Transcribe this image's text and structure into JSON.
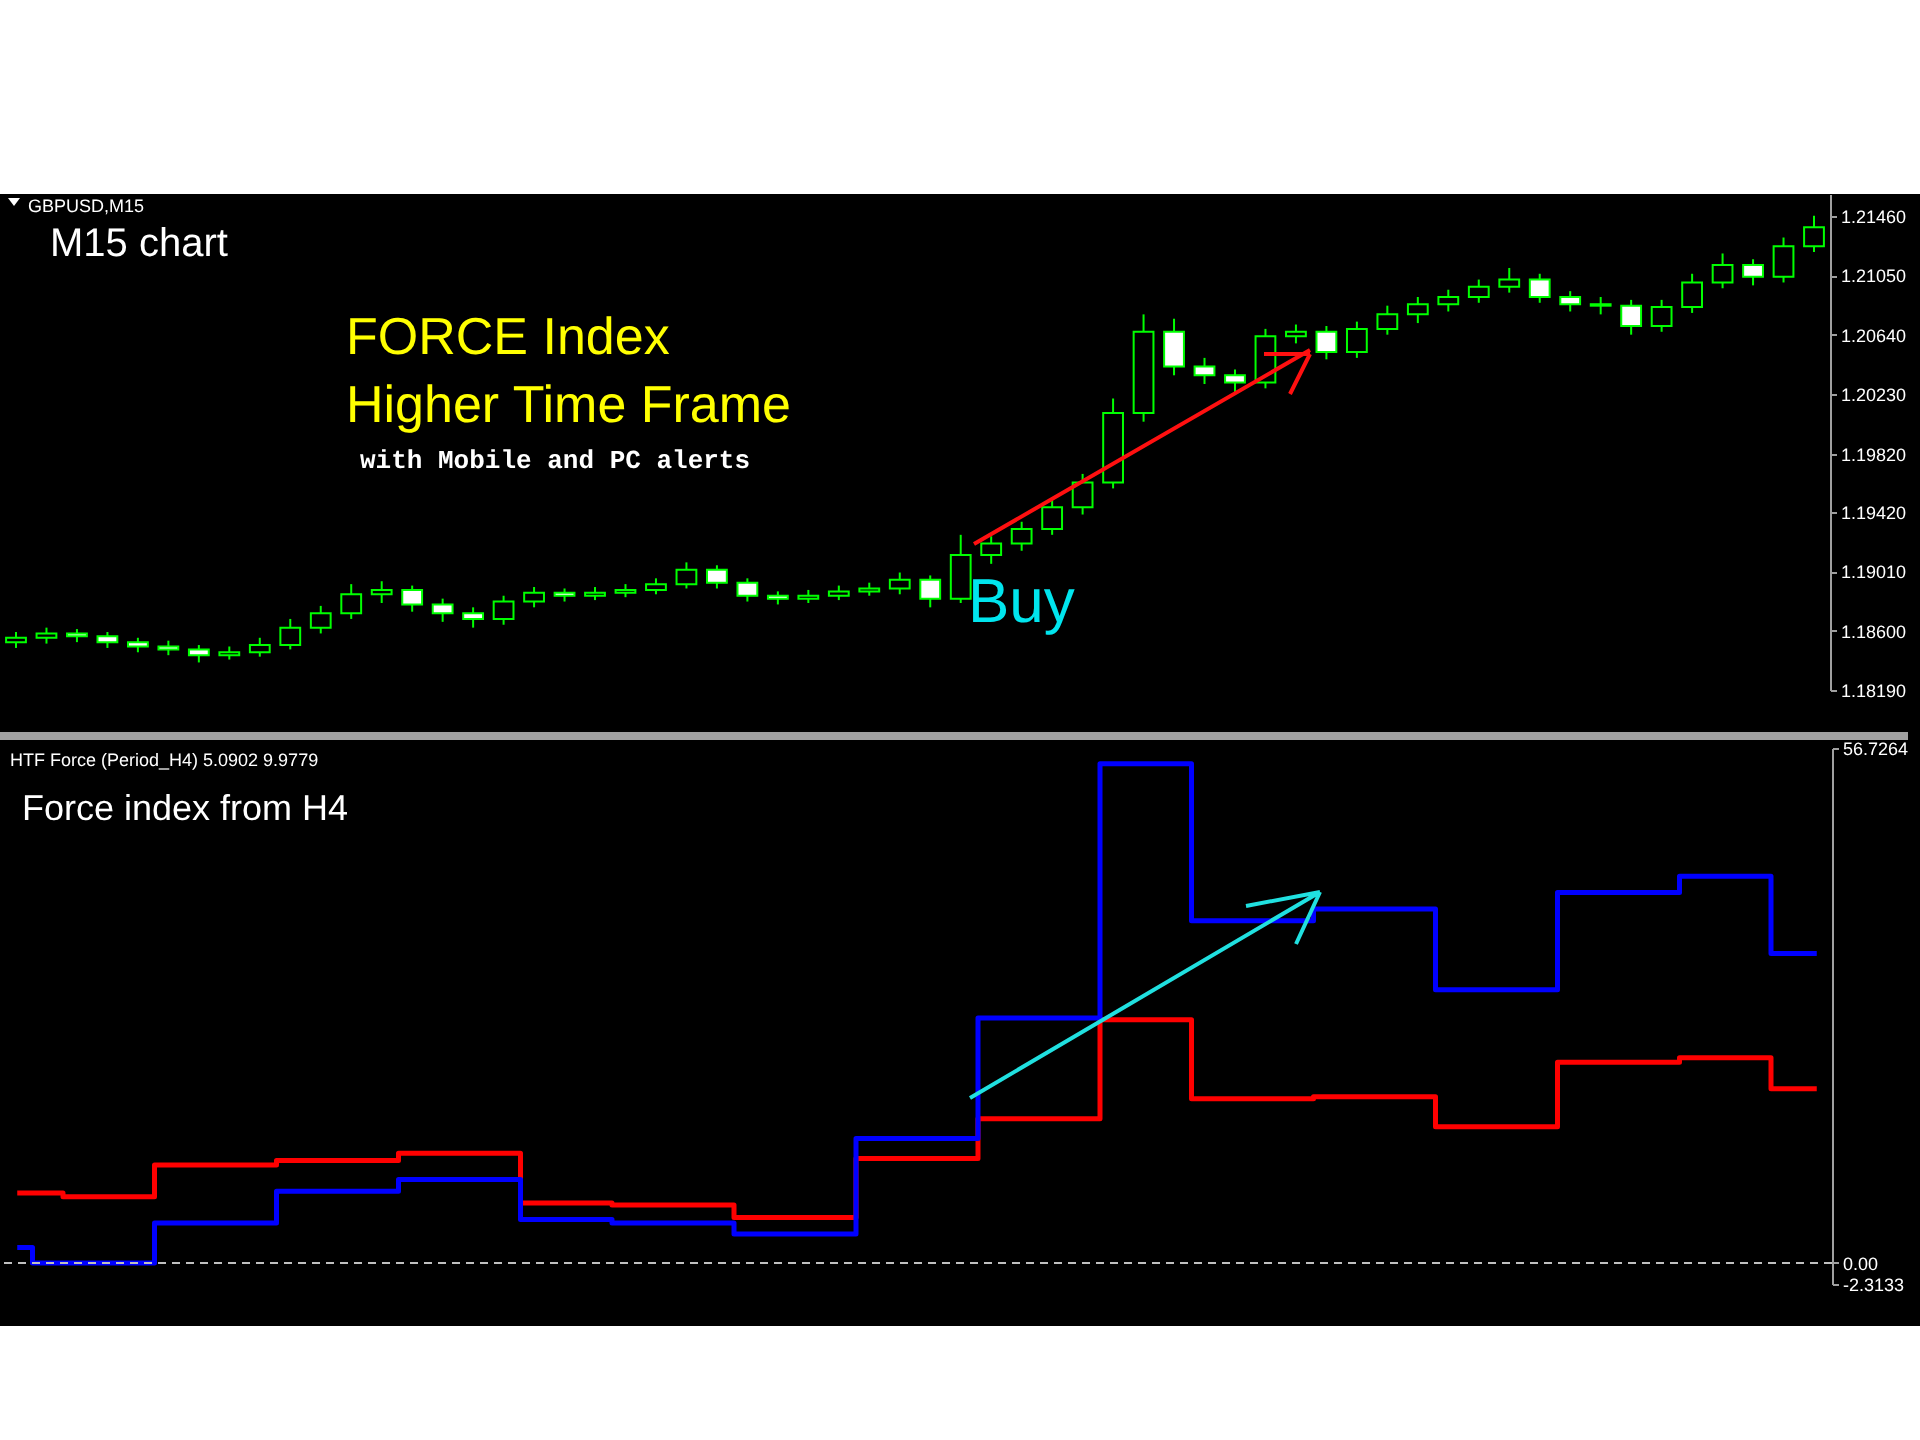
{
  "chart_data": [
    {
      "type": "candlestick",
      "title": "GBPUSD,M15",
      "color": "#00ff00",
      "annotations": [
        "M15 chart",
        "FORCE Index",
        "Higher Time Frame",
        "with Mobile and PC alerts",
        "Buy"
      ],
      "categories": [
        null,
        null,
        null,
        null,
        null,
        null,
        null,
        null,
        null,
        null,
        null,
        null,
        null,
        null,
        null,
        null,
        null,
        null,
        null,
        null,
        null,
        null,
        null,
        null,
        null,
        null,
        null,
        null,
        null,
        null,
        null,
        null,
        null,
        null,
        null,
        null,
        null,
        null,
        null,
        null,
        null,
        null,
        null,
        null,
        null,
        null,
        null,
        null,
        null,
        null,
        null,
        null,
        null,
        null,
        null,
        null,
        null,
        null,
        null,
        null
      ],
      "ohlc": [
        [
          1.1852,
          1.1859,
          1.1848,
          1.1855
        ],
        [
          1.1855,
          1.1862,
          1.1851,
          1.1858
        ],
        [
          1.1858,
          1.1861,
          1.1852,
          1.1856
        ],
        [
          1.1856,
          1.1859,
          1.1848,
          1.1852
        ],
        [
          1.1852,
          1.1855,
          1.1845,
          1.1849
        ],
        [
          1.1849,
          1.1853,
          1.1843,
          1.1847
        ],
        [
          1.1847,
          1.185,
          1.1838,
          1.1843
        ],
        [
          1.1843,
          1.1849,
          1.184,
          1.1845
        ],
        [
          1.1845,
          1.1855,
          1.1842,
          1.185
        ],
        [
          1.185,
          1.1868,
          1.1847,
          1.1862
        ],
        [
          1.1862,
          1.1877,
          1.1858,
          1.1872
        ],
        [
          1.1872,
          1.1892,
          1.1868,
          1.1885
        ],
        [
          1.1885,
          1.1894,
          1.1879,
          1.1888
        ],
        [
          1.1888,
          1.1891,
          1.1873,
          1.1878
        ],
        [
          1.1878,
          1.1882,
          1.1866,
          1.1872
        ],
        [
          1.1872,
          1.1876,
          1.1862,
          1.1868
        ],
        [
          1.1868,
          1.1884,
          1.1864,
          1.188
        ],
        [
          1.188,
          1.189,
          1.1876,
          1.1886
        ],
        [
          1.1886,
          1.1889,
          1.188,
          1.1884
        ],
        [
          1.1884,
          1.189,
          1.1881,
          1.1886
        ],
        [
          1.1886,
          1.1892,
          1.1883,
          1.1888
        ],
        [
          1.1888,
          1.1896,
          1.1885,
          1.1892
        ],
        [
          1.1892,
          1.1907,
          1.1889,
          1.1902
        ],
        [
          1.1902,
          1.1905,
          1.1889,
          1.1893
        ],
        [
          1.1893,
          1.1896,
          1.188,
          1.1884
        ],
        [
          1.1884,
          1.1887,
          1.1878,
          1.1882
        ],
        [
          1.1882,
          1.1888,
          1.1879,
          1.1884
        ],
        [
          1.1884,
          1.1891,
          1.1881,
          1.1887
        ],
        [
          1.1887,
          1.1893,
          1.1884,
          1.1889
        ],
        [
          1.1889,
          1.19,
          1.1885,
          1.1895
        ],
        [
          1.1895,
          1.1898,
          1.1876,
          1.1882
        ],
        [
          1.1882,
          1.1926,
          1.1879,
          1.1912
        ],
        [
          1.1912,
          1.1925,
          1.1906,
          1.192
        ],
        [
          1.192,
          1.1935,
          1.1915,
          1.193
        ],
        [
          1.193,
          1.1951,
          1.1926,
          1.1945
        ],
        [
          1.1945,
          1.1968,
          1.194,
          1.1962
        ],
        [
          1.1962,
          1.202,
          1.1958,
          1.201
        ],
        [
          1.201,
          1.2078,
          1.2004,
          1.2066
        ],
        [
          1.2066,
          1.2075,
          1.2036,
          1.2042
        ],
        [
          1.2042,
          1.2048,
          1.203,
          1.2036
        ],
        [
          1.2036,
          1.204,
          1.2024,
          1.2031
        ],
        [
          1.2031,
          1.2068,
          1.2027,
          1.2063
        ],
        [
          1.2063,
          1.2071,
          1.2058,
          1.2066
        ],
        [
          1.2066,
          1.207,
          1.2047,
          1.2052
        ],
        [
          1.2052,
          1.2073,
          1.2048,
          1.2068
        ],
        [
          1.2068,
          1.2084,
          1.2064,
          1.2078
        ],
        [
          1.2078,
          1.209,
          1.2072,
          1.2085
        ],
        [
          1.2085,
          1.2095,
          1.208,
          1.209
        ],
        [
          1.209,
          1.2102,
          1.2086,
          1.2097
        ],
        [
          1.2097,
          1.211,
          1.2093,
          1.2102
        ],
        [
          1.2102,
          1.2106,
          1.2086,
          1.209
        ],
        [
          1.209,
          1.2094,
          1.208,
          1.2085
        ],
        [
          1.2085,
          1.209,
          1.2078,
          1.2084
        ],
        [
          1.2084,
          1.2088,
          1.2064,
          1.207
        ],
        [
          1.207,
          1.2088,
          1.2066,
          1.2083
        ],
        [
          1.2083,
          1.2106,
          1.2079,
          1.21
        ],
        [
          1.21,
          1.212,
          1.2096,
          1.2112
        ],
        [
          1.2112,
          1.2116,
          1.2098,
          1.2104
        ],
        [
          1.2104,
          1.2131,
          1.21,
          1.2125
        ],
        [
          1.2125,
          1.2146,
          1.2121,
          1.2138
        ]
      ],
      "ylim": [
        1.1819,
        1.2161
      ],
      "yticks": [
        {
          "value": 1.2146,
          "label": "1.21460"
        },
        {
          "value": 1.2105,
          "label": "1.21050"
        },
        {
          "value": 1.2064,
          "label": "1.20640"
        },
        {
          "value": 1.2023,
          "label": "1.20230"
        },
        {
          "value": 1.1982,
          "label": "1.19820"
        },
        {
          "value": 1.1942,
          "label": "1.19420"
        },
        {
          "value": 1.1901,
          "label": "1.19010"
        },
        {
          "value": 1.186,
          "label": "1.18600"
        },
        {
          "value": 1.1819,
          "label": "1.18190"
        }
      ],
      "tick_labels": "y"
    },
    {
      "type": "step",
      "title": "HTF Force (Period_H4) 5.0902 9.9779",
      "annotations": [
        "Force index from H4"
      ],
      "categories": [
        null,
        null,
        null,
        null,
        null,
        null,
        null,
        null,
        null,
        null,
        null,
        null,
        null,
        null,
        null,
        null,
        null,
        null,
        null,
        null,
        null,
        null,
        null,
        null,
        null,
        null,
        null,
        null,
        null,
        null,
        null,
        null,
        null,
        null,
        null,
        null,
        null,
        null,
        null,
        null,
        null,
        null,
        null,
        null,
        null,
        null,
        null,
        null,
        null,
        null,
        null,
        null,
        null,
        null,
        null,
        null,
        null,
        null,
        null,
        null
      ],
      "series": [
        {
          "color": "#ff0000",
          "values": [
            7.7,
            7.7,
            7.3,
            7.3,
            7.3,
            10.8,
            10.8,
            10.8,
            10.8,
            11.3,
            11.3,
            11.3,
            11.3,
            12.1,
            12.1,
            12.1,
            12.1,
            6.6,
            6.6,
            6.6,
            6.4,
            6.4,
            6.4,
            6.4,
            5.0,
            5.0,
            5.0,
            5.0,
            11.5,
            11.5,
            11.5,
            11.5,
            15.9,
            15.9,
            15.9,
            15.9,
            26.8,
            26.8,
            26.8,
            18.1,
            18.1,
            18.1,
            18.1,
            18.3,
            18.3,
            18.3,
            18.3,
            15.0,
            15.0,
            15.0,
            15.0,
            22.1,
            22.1,
            22.1,
            22.1,
            22.6,
            22.6,
            22.6,
            19.2,
            19.2
          ]
        },
        {
          "color": "#0000ff",
          "values": [
            1.7,
            0.0,
            0.0,
            0.0,
            0.0,
            4.4,
            4.4,
            4.4,
            4.4,
            7.9,
            7.9,
            7.9,
            7.9,
            9.2,
            9.2,
            9.2,
            9.2,
            4.8,
            4.8,
            4.8,
            4.4,
            4.4,
            4.4,
            4.4,
            3.2,
            3.2,
            3.2,
            3.2,
            13.7,
            13.7,
            13.7,
            13.7,
            27.0,
            27.0,
            27.0,
            27.0,
            55.0,
            55.0,
            55.0,
            37.7,
            37.7,
            37.7,
            37.7,
            39.0,
            39.0,
            39.0,
            39.0,
            30.1,
            30.1,
            30.1,
            30.1,
            40.8,
            40.8,
            40.8,
            40.8,
            42.6,
            42.6,
            42.6,
            34.1,
            34.1
          ]
        }
      ],
      "ylim": [
        -2.3133,
        56.7264
      ],
      "yticks": [
        56.7264,
        {
          "value": 0,
          "label": "0.00"
        },
        -2.3133
      ],
      "ref_lines": [
        {
          "axis": "y",
          "value": 0,
          "color": "#c0c0c0",
          "line_style": "dashed"
        }
      ],
      "tick_labels": "y"
    }
  ]
}
